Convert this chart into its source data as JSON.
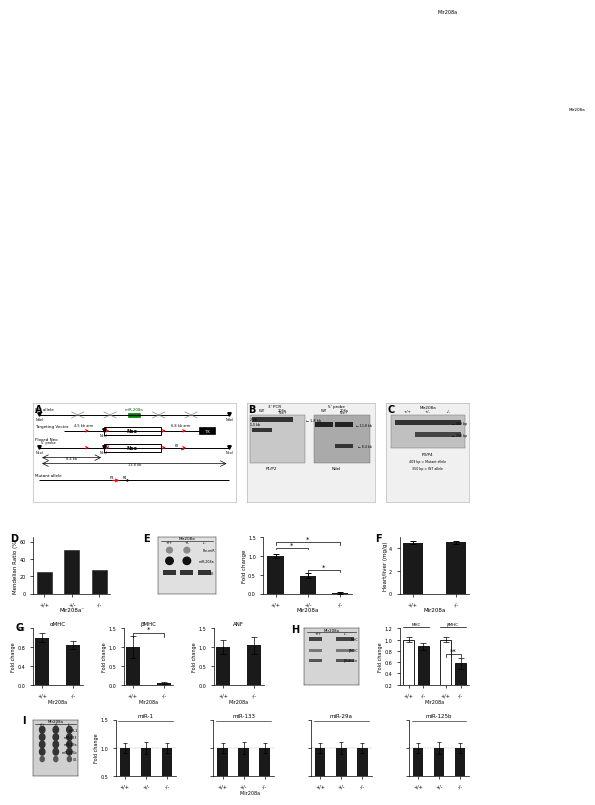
{
  "panel_D": {
    "ylabel": "Mendelian Ratio (%)",
    "xlabel": "Mir208a⁻",
    "categories": [
      "+/+",
      "+/-",
      "-/-"
    ],
    "values": [
      25,
      50,
      27
    ],
    "bar_color": "#1a1a1a",
    "ylim": [
      0,
      65
    ],
    "yticks": [
      0,
      20,
      40,
      60
    ]
  },
  "panel_E_bar": {
    "ylabel": "Fold change",
    "xlabel": "Mir208a",
    "categories": [
      "+/+",
      "+/-",
      "-/-"
    ],
    "values": [
      1.0,
      0.47,
      0.02
    ],
    "errors": [
      0.06,
      0.07,
      0.02
    ],
    "bar_color": "#1a1a1a",
    "ylim": [
      0,
      1.5
    ],
    "yticks": [
      0,
      0.5,
      1.0,
      1.5
    ]
  },
  "panel_F": {
    "ylabel": "Heart/liver (mg/g)",
    "xlabel": "Mir208a",
    "categories": [
      "+/+",
      "-/-"
    ],
    "values": [
      4.5,
      4.55
    ],
    "errors": [
      0.12,
      0.13
    ],
    "bar_color": "#1a1a1a",
    "ylim": [
      0,
      5
    ],
    "yticks": [
      0,
      2,
      4
    ]
  },
  "panel_G_aMHC": {
    "title": "αMHC",
    "ylabel": "Fold change",
    "xlabel": "Mir208a",
    "categories": [
      "+/+",
      "-/-"
    ],
    "values": [
      1.0,
      0.85
    ],
    "errors": [
      0.1,
      0.09
    ],
    "bar_color": "#1a1a1a",
    "ylim": [
      0,
      1.2
    ],
    "yticks": [
      0,
      0.4,
      0.8,
      1.2
    ]
  },
  "panel_G_bMHC": {
    "title": "βMHC",
    "ylabel": "Fold change",
    "xlabel": "Mir208a",
    "categories": [
      "+/+",
      "-/-"
    ],
    "values": [
      1.0,
      0.05
    ],
    "errors": [
      0.3,
      0.02
    ],
    "bar_color": "#1a1a1a",
    "ylim": [
      0,
      1.5
    ],
    "yticks": [
      0,
      0.5,
      1.0,
      1.5
    ],
    "sig": true
  },
  "panel_G_ANF": {
    "title": "ANF",
    "ylabel": "Fold change",
    "xlabel": "Mir208a",
    "categories": [
      "+/+",
      "-/-"
    ],
    "values": [
      1.0,
      1.05
    ],
    "errors": [
      0.18,
      0.22
    ],
    "bar_color": "#1a1a1a",
    "ylim": [
      0,
      1.5
    ],
    "yticks": [
      0,
      0.5,
      1.0,
      1.5
    ]
  },
  "panel_H_bar": {
    "ylabel": "Fold change",
    "xlabel": "Mir208a",
    "MHC_values": [
      1.0,
      0.88
    ],
    "MHC_errors": [
      0.05,
      0.06
    ],
    "bMHC_values": [
      1.0,
      0.58
    ],
    "bMHC_errors": [
      0.05,
      0.1
    ],
    "white_color": "#ffffff",
    "black_color": "#1a1a1a",
    "ylim": [
      0.2,
      1.2
    ],
    "yticks": [
      0.2,
      0.4,
      0.6,
      0.8,
      1.0,
      1.2
    ]
  },
  "panel_I_bar": {
    "ylabel": "Fold change",
    "xlabel": "Mir208a",
    "mirnas": [
      "miR-1",
      "miR-133",
      "miR-29a",
      "miR-125b"
    ],
    "categories": [
      "+/+",
      "+/-",
      "-/-"
    ],
    "values": {
      "miR-1": [
        1.0,
        1.0,
        1.0
      ],
      "miR-133": [
        1.0,
        1.0,
        1.0
      ],
      "miR-29a": [
        1.0,
        1.0,
        1.0
      ],
      "miR-125b": [
        1.0,
        1.0,
        1.0
      ]
    },
    "errors": {
      "miR-1": [
        0.09,
        0.11,
        0.09
      ],
      "miR-133": [
        0.09,
        0.11,
        0.09
      ],
      "miR-29a": [
        0.09,
        0.11,
        0.09
      ],
      "miR-125b": [
        0.09,
        0.11,
        0.09
      ]
    },
    "bar_color": "#1a1a1a",
    "ylim": [
      0.5,
      1.5
    ],
    "yticks": [
      0.5,
      1.0,
      1.5
    ]
  },
  "bg": "#ffffff",
  "fs": 4.5,
  "panel_label_fs": 7
}
